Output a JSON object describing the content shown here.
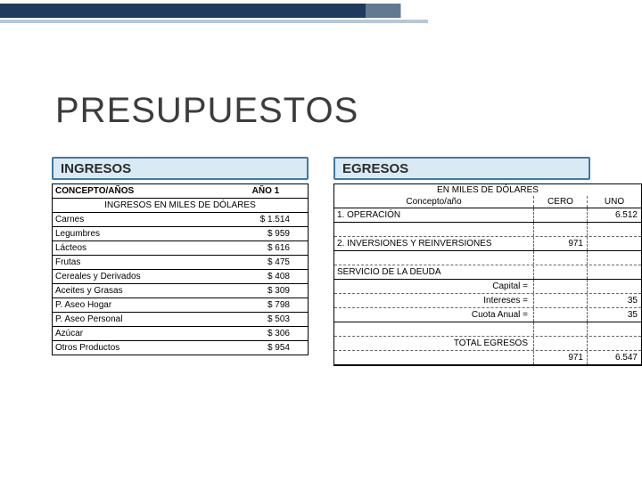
{
  "title": "PRESUPUESTOS",
  "ingresos": {
    "header": "INGRESOS",
    "col_concepto": "CONCEPTO/AÑOS",
    "col_ano": "AÑO 1",
    "section_label": "INGRESOS EN MILES DE DÓLARES",
    "rows": [
      {
        "label": "Carnes",
        "value": "$ 1.514"
      },
      {
        "label": "Legumbres",
        "value": "$ 959"
      },
      {
        "label": "Lácteos",
        "value": "$ 616"
      },
      {
        "label": "Frutas",
        "value": "$ 475"
      },
      {
        "label": "Cereales y Derivados",
        "value": "$ 408"
      },
      {
        "label": "Aceites y Grasas",
        "value": "$ 309"
      },
      {
        "label": "P. Aseo Hogar",
        "value": "$ 798"
      },
      {
        "label": "P. Aseo Personal",
        "value": "$ 503"
      },
      {
        "label": "Azúcar",
        "value": "$ 306"
      },
      {
        "label": "Otros Productos",
        "value": "$ 954"
      }
    ]
  },
  "egresos": {
    "header": "EGRESOS",
    "unit_label": "EN MILES DE DÓLARES",
    "col_concepto": "Concepto/año",
    "col_cero": "CERO",
    "col_uno": "UNO",
    "rows": [
      {
        "label": "1.   OPERACIÓN",
        "cero": "",
        "uno": "6.512"
      },
      {
        "label": "",
        "cero": "",
        "uno": "",
        "dashed": true
      },
      {
        "label": "2.  INVERSIONES Y REINVERSIONES",
        "cero": "971",
        "uno": ""
      },
      {
        "label": "",
        "cero": "",
        "uno": "",
        "dashed": true
      },
      {
        "label": "SERVICIO DE LA DEUDA",
        "cero": "",
        "uno": ""
      },
      {
        "label": "Capital =",
        "cero": "",
        "uno": "",
        "right": true,
        "dashed": true
      },
      {
        "label": "Intereses =",
        "cero": "",
        "uno": "35",
        "right": true,
        "dashed": true
      },
      {
        "label": "Cuota Anual =",
        "cero": "",
        "uno": "35",
        "right": true
      },
      {
        "label": "",
        "cero": "",
        "uno": "",
        "dashed": true
      },
      {
        "label": "TOTAL EGRESOS",
        "cero": "",
        "uno": "",
        "right": true,
        "dashed": true
      },
      {
        "label": "",
        "cero": "971",
        "uno": "6.547"
      }
    ]
  },
  "colors": {
    "header_fill": "#daeaf5",
    "header_border": "#3e7aa8",
    "topbar_dark": "#1e3a5f",
    "topbar_light": "#b9c7d3"
  }
}
